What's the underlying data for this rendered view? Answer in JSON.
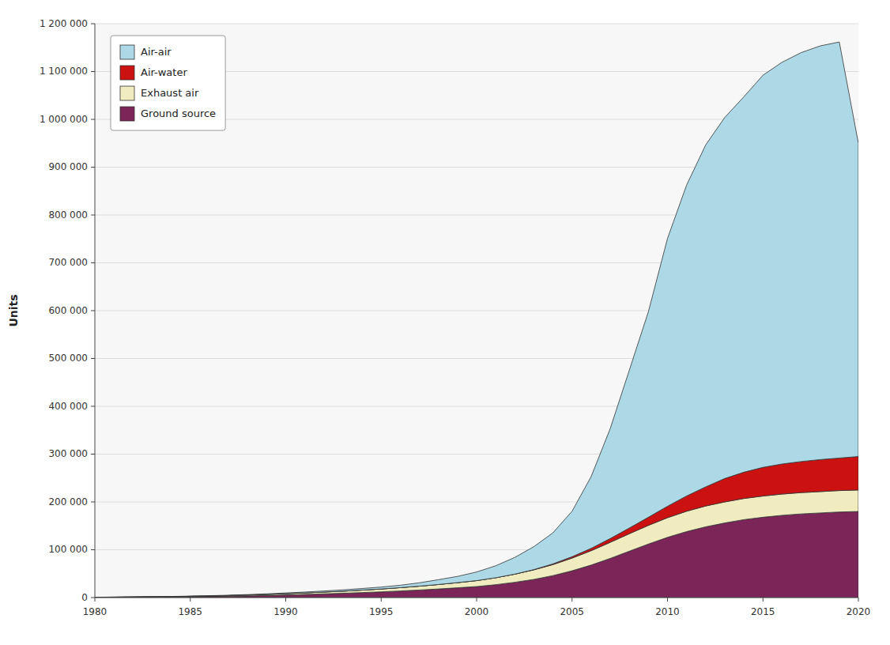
{
  "chart_data": {
    "type": "area",
    "stacked": true,
    "grid": true,
    "legend": "upper left",
    "ylabel": "Units",
    "x": [
      1980,
      1981,
      1982,
      1983,
      1984,
      1985,
      1986,
      1987,
      1988,
      1989,
      1990,
      1991,
      1992,
      1993,
      1994,
      1995,
      1996,
      1997,
      1998,
      1999,
      2000,
      2001,
      2002,
      2003,
      2004,
      2005,
      2006,
      2007,
      2008,
      2009,
      2010,
      2011,
      2012,
      2013,
      2014,
      2015,
      2016,
      2017,
      2018,
      2019,
      2020
    ],
    "series": [
      {
        "name": "Ground source",
        "color": "#7B2558",
        "values": [
          500,
          600,
          800,
          1000,
          1300,
          1700,
          2200,
          2800,
          3500,
          4400,
          5500,
          6600,
          7800,
          9000,
          10500,
          12000,
          13800,
          15800,
          18000,
          20500,
          23000,
          27000,
          32000,
          38000,
          46000,
          56000,
          68000,
          82000,
          97000,
          112000,
          126000,
          138000,
          148000,
          156000,
          163000,
          168000,
          172000,
          175000,
          177000,
          179000,
          180000
        ]
      },
      {
        "name": "Exhaust air",
        "color": "#F0ECC0",
        "values": [
          200,
          300,
          400,
          500,
          700,
          900,
          1100,
          1400,
          1800,
          2200,
          2700,
          3200,
          3800,
          4400,
          5200,
          6000,
          7000,
          8100,
          9400,
          10800,
          12500,
          14500,
          17000,
          20000,
          23000,
          26500,
          30000,
          33500,
          36500,
          39000,
          41000,
          42500,
          43500,
          44000,
          44200,
          44300,
          44400,
          44500,
          44600,
          44800,
          45000
        ]
      },
      {
        "name": "Air-water",
        "color": "#CC1111",
        "values": [
          0,
          0,
          0,
          0,
          0,
          0,
          0,
          0,
          0,
          0,
          0,
          0,
          0,
          0,
          0,
          0,
          0,
          0,
          0,
          0,
          0,
          0,
          0,
          500,
          1500,
          3000,
          5000,
          8000,
          12000,
          17000,
          24000,
          32000,
          40000,
          49000,
          55000,
          60000,
          63000,
          65000,
          67000,
          68000,
          70000
        ]
      },
      {
        "name": "Air-air",
        "color": "#ADD8E6",
        "values": [
          100,
          150,
          200,
          300,
          400,
          500,
          600,
          800,
          1000,
          1200,
          1500,
          1800,
          2200,
          2700,
          3300,
          4000,
          5000,
          7000,
          10000,
          13000,
          18000,
          25000,
          35000,
          48000,
          65000,
          95000,
          150000,
          230000,
          330000,
          430000,
          560000,
          650000,
          715000,
          755000,
          785000,
          820000,
          840000,
          855000,
          865000,
          870000,
          655000
        ]
      }
    ],
    "xlim": [
      1980,
      2020
    ],
    "xticks": [
      1980,
      1985,
      1990,
      1995,
      2000,
      2005,
      2010,
      2015,
      2020
    ],
    "ylim": [
      0,
      1200000
    ],
    "yticks": [
      0,
      {
        "value": 100000,
        "label": "100 000"
      },
      {
        "value": 200000,
        "label": "200 000"
      },
      {
        "value": 300000,
        "label": "300 000"
      },
      {
        "value": 400000,
        "label": "400 000"
      },
      {
        "value": 500000,
        "label": "500 000"
      },
      {
        "value": 600000,
        "label": "600 000"
      },
      {
        "value": 700000,
        "label": "700 000"
      },
      {
        "value": 800000,
        "label": "800 000"
      },
      {
        "value": 900000,
        "label": "900 000"
      },
      {
        "value": 1000000,
        "label": "1 000 000"
      },
      {
        "value": 1100000,
        "label": "1 100 000"
      },
      {
        "value": 1200000,
        "label": "1 200 000"
      }
    ]
  }
}
